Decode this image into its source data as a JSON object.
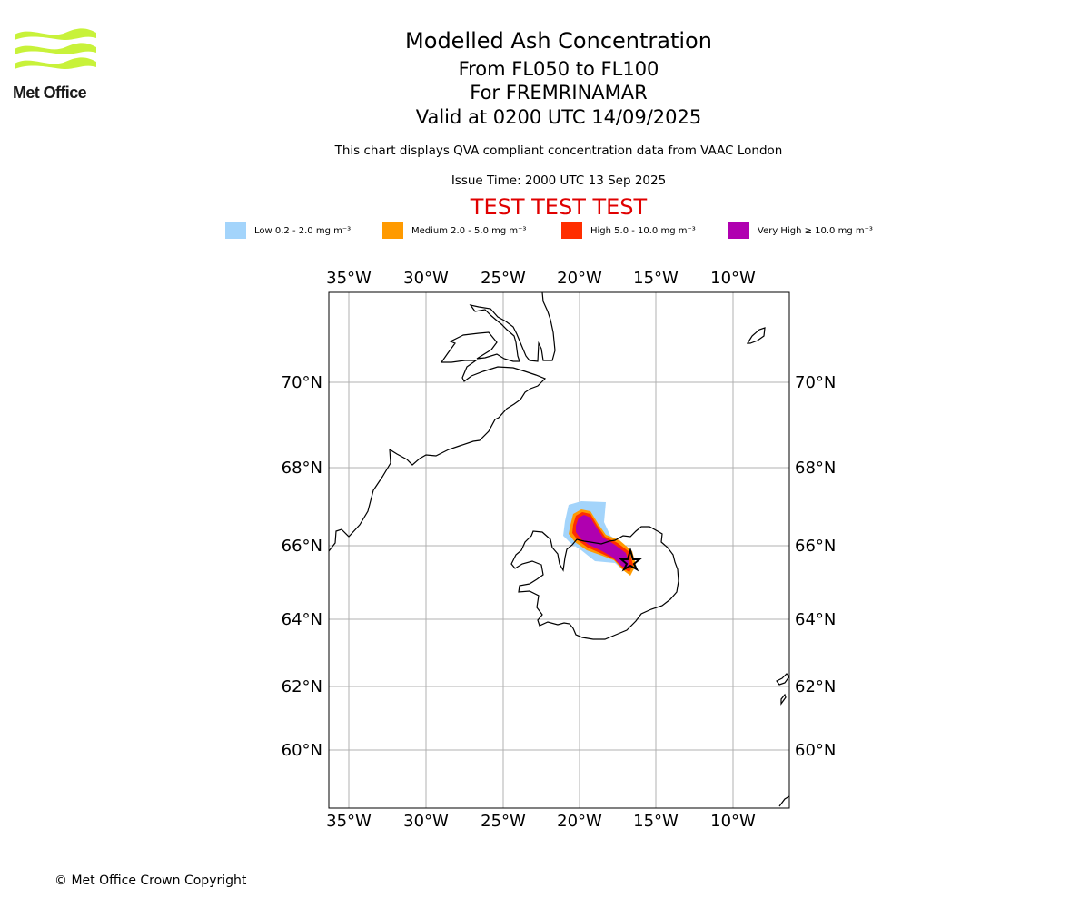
{
  "header": {
    "logo_text": "Met Office",
    "title": "Modelled Ash Concentration",
    "level_range": "From FL050 to FL100",
    "volcano": "For FREMRINAMAR",
    "valid_time": "Valid at 0200 UTC 14/09/2025",
    "description": "This chart displays QVA compliant concentration data from VAAC London",
    "issue_time": "Issue Time: 2000 UTC 13 Sep 2025",
    "test_banner": "TEST TEST TEST"
  },
  "legend": [
    {
      "label": "Low 0.2 - 2.0 mg m⁻³",
      "color": "#a3d4fb"
    },
    {
      "label": "Medium 2.0 - 5.0 mg m⁻³",
      "color": "#ff9a00"
    },
    {
      "label": "High 5.0 - 10.0 mg m⁻³",
      "color": "#ff2e00"
    },
    {
      "label": "Very High ≥ 10.0 mg m⁻³",
      "color": "#b000b0"
    }
  ],
  "map": {
    "lon_ticks": [
      "35°W",
      "30°W",
      "25°W",
      "20°W",
      "15°W",
      "10°W"
    ],
    "lat_ticks": [
      "70°N",
      "68°N",
      "66°N",
      "64°N",
      "62°N",
      "60°N"
    ],
    "volcano_icon": "volcano-star-icon"
  },
  "footer": {
    "copyright": "© Met Office Crown Copyright"
  }
}
